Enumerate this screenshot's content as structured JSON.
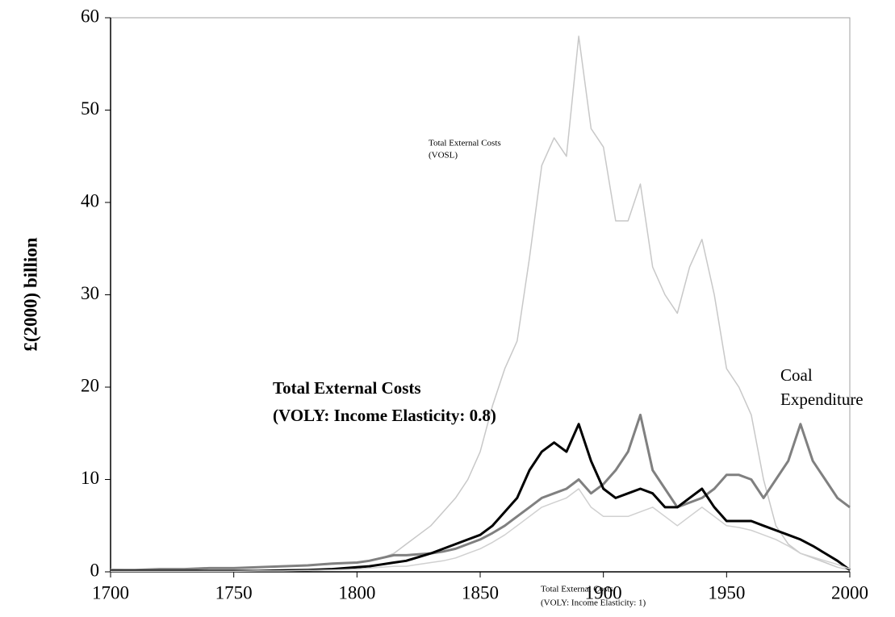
{
  "chart_data": {
    "type": "line",
    "ylabel": "£(2000) billion",
    "x": [
      1700,
      1710,
      1720,
      1730,
      1740,
      1750,
      1760,
      1770,
      1780,
      1790,
      1800,
      1805,
      1810,
      1815,
      1820,
      1825,
      1830,
      1835,
      1840,
      1845,
      1850,
      1855,
      1860,
      1865,
      1870,
      1875,
      1880,
      1885,
      1890,
      1895,
      1900,
      1905,
      1910,
      1915,
      1920,
      1925,
      1930,
      1935,
      1940,
      1945,
      1950,
      1955,
      1960,
      1965,
      1970,
      1975,
      1980,
      1985,
      1990,
      1995,
      2000
    ],
    "series": [
      {
        "name": "Total External Costs (VOSL)",
        "color": "#c8c8c8",
        "width": 1.5,
        "values": [
          0.3,
          0.2,
          0.3,
          0.3,
          0.4,
          0.4,
          0.5,
          0.6,
          0.7,
          0.8,
          1.0,
          1.2,
          1.5,
          2,
          3,
          4,
          5,
          6.5,
          8,
          10,
          13,
          18,
          22,
          25,
          34,
          44,
          47,
          45,
          58,
          48,
          46,
          38,
          38,
          42,
          33,
          30,
          28,
          33,
          36,
          30,
          22,
          20,
          17,
          10,
          5,
          3,
          2,
          1.5,
          1,
          0.5,
          0.2
        ]
      },
      {
        "name": "Coal Expenditure",
        "color": "#808080",
        "width": 3,
        "values": [
          0.2,
          0.2,
          0.3,
          0.3,
          0.4,
          0.4,
          0.5,
          0.6,
          0.7,
          0.9,
          1.0,
          1.2,
          1.5,
          1.8,
          1.8,
          1.9,
          2,
          2.2,
          2.5,
          3,
          3.5,
          4.2,
          5,
          6,
          7,
          8,
          8.5,
          9,
          10,
          8.5,
          9.5,
          11,
          13,
          17,
          11,
          9,
          7,
          7.5,
          8,
          9,
          10.5,
          10.5,
          10,
          8,
          10,
          12,
          16,
          12,
          10,
          8,
          7
        ]
      },
      {
        "name": "Total External Costs (VOLY: Income Elasticity: 0.8)",
        "color": "#000000",
        "width": 3,
        "values": [
          0.1,
          0.1,
          0.1,
          0.1,
          0.1,
          0.1,
          0.1,
          0.15,
          0.2,
          0.3,
          0.5,
          0.6,
          0.8,
          1,
          1.2,
          1.6,
          2,
          2.5,
          3,
          3.5,
          4,
          5,
          6.5,
          8,
          11,
          13,
          14,
          13,
          16,
          12,
          9,
          8,
          8.5,
          9,
          8.5,
          7,
          7,
          8,
          9,
          7,
          5.5,
          5.5,
          5.5,
          5,
          4.5,
          4,
          3.5,
          2.8,
          2,
          1.2,
          0.2
        ]
      },
      {
        "name": "Total External Costs (VOLY: Income Elasticity: 1)",
        "color": "#d0d0d0",
        "width": 1.5,
        "values": [
          0.05,
          0.05,
          0.05,
          0.05,
          0.05,
          0.05,
          0.1,
          0.1,
          0.15,
          0.2,
          0.3,
          0.4,
          0.5,
          0.6,
          0.6,
          0.8,
          1,
          1.2,
          1.5,
          2,
          2.5,
          3.2,
          4,
          5,
          6,
          7,
          7.5,
          8,
          9,
          7,
          6,
          6,
          6,
          6.5,
          7,
          6,
          5,
          6,
          7,
          6,
          5,
          4.8,
          4.5,
          4,
          3.5,
          2.8,
          2,
          1.6,
          1.2,
          0.8,
          0.3
        ]
      }
    ],
    "annotations": [
      {
        "lines": [
          "Total External Costs",
          "(VOSL)"
        ]
      },
      {
        "lines": [
          "Coal",
          "Expenditure"
        ]
      },
      {
        "lines": [
          "Total External Costs",
          "(VOLY: Income Elasticity: 0.8)"
        ]
      },
      {
        "lines": [
          "Total External Costs",
          "(VOLY:  Income Elasticity: 1)"
        ]
      }
    ],
    "xlim": [
      1700,
      2000
    ],
    "xticks": [
      1700,
      1750,
      1800,
      1850,
      1900,
      1950,
      2000
    ],
    "ylim": [
      0,
      60
    ],
    "yticks": [
      0,
      10,
      20,
      30,
      40,
      50,
      60
    ]
  }
}
